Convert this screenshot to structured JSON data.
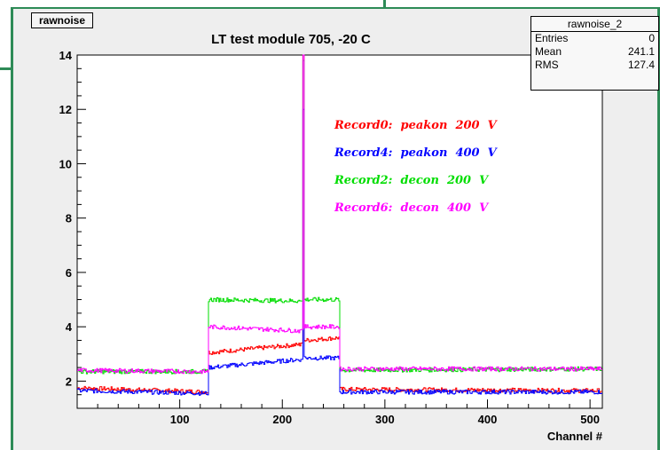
{
  "hist_tag": "rawnoise",
  "stats": {
    "name": "rawnoise_2",
    "rows": [
      {
        "label": "Entries",
        "value": "0"
      },
      {
        "label": "Mean",
        "value": "241.1"
      },
      {
        "label": "RMS",
        "value": "127.4"
      }
    ]
  },
  "chart_data": {
    "type": "line",
    "title": "LT test module 705, -20 C",
    "xlabel": "Channel #",
    "ylabel": "",
    "xlim": [
      0,
      512
    ],
    "ylim": [
      1,
      14
    ],
    "xticks": [
      100,
      200,
      300,
      400,
      500
    ],
    "yticks": [
      2,
      4,
      6,
      8,
      10,
      12,
      14
    ],
    "legend_placement": "inside-top-right",
    "series": [
      {
        "name": "Record0:  peakon  200  V",
        "color": "#ff0000",
        "segments": [
          {
            "x": [
              0,
              128
            ],
            "y": [
              1.75,
              1.6
            ]
          },
          {
            "x": [
              128,
              218
            ],
            "y": [
              3.05,
              3.35
            ]
          },
          {
            "x": [
              218,
              220,
              222
            ],
            "y": [
              3.4,
              14.0,
              3.5
            ]
          },
          {
            "x": [
              222,
              256
            ],
            "y": [
              3.5,
              3.6
            ]
          },
          {
            "x": [
              256,
              512
            ],
            "y": [
              1.7,
              1.65
            ]
          }
        ]
      },
      {
        "name": "Record4:  peakon  400  V",
        "color": "#0000ff",
        "segments": [
          {
            "x": [
              0,
              128
            ],
            "y": [
              1.65,
              1.55
            ]
          },
          {
            "x": [
              128,
              218
            ],
            "y": [
              2.5,
              2.8
            ]
          },
          {
            "x": [
              218,
              220,
              222
            ],
            "y": [
              2.8,
              12.0,
              2.9
            ]
          },
          {
            "x": [
              222,
              256
            ],
            "y": [
              2.85,
              2.85
            ]
          },
          {
            "x": [
              256,
              512
            ],
            "y": [
              1.6,
              1.6
            ]
          }
        ]
      },
      {
        "name": "Record2:  decon  200  V",
        "color": "#00dd00",
        "segments": [
          {
            "x": [
              0,
              128
            ],
            "y": [
              2.35,
              2.35
            ]
          },
          {
            "x": [
              128,
              218
            ],
            "y": [
              5.0,
              4.95
            ]
          },
          {
            "x": [
              218,
              220,
              222
            ],
            "y": [
              4.95,
              13.8,
              5.0
            ]
          },
          {
            "x": [
              222,
              256
            ],
            "y": [
              5.0,
              5.0
            ]
          },
          {
            "x": [
              256,
              512
            ],
            "y": [
              2.4,
              2.45
            ]
          }
        ]
      },
      {
        "name": "Record6:  decon  400  V",
        "color": "#ff00ff",
        "segments": [
          {
            "x": [
              0,
              128
            ],
            "y": [
              2.4,
              2.35
            ]
          },
          {
            "x": [
              128,
              218
            ],
            "y": [
              4.0,
              3.85
            ]
          },
          {
            "x": [
              218,
              220,
              222
            ],
            "y": [
              3.9,
              14.0,
              3.95
            ]
          },
          {
            "x": [
              222,
              256
            ],
            "y": [
              4.0,
              4.0
            ]
          },
          {
            "x": [
              256,
              512
            ],
            "y": [
              2.45,
              2.45
            ]
          }
        ]
      }
    ]
  }
}
